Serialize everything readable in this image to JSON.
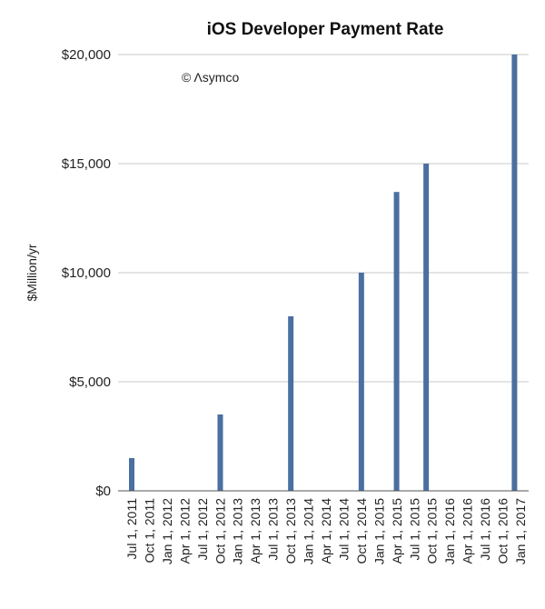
{
  "chart_data": {
    "type": "bar",
    "title": "iOS Developer Payment Rate",
    "ylabel": "$Million/yr",
    "xlabel": "",
    "annotation": "© Λsymco",
    "ylim": [
      0,
      20000
    ],
    "yticks": [
      0,
      5000,
      10000,
      15000,
      20000
    ],
    "ytick_labels": [
      "$0",
      "$5,000",
      "$10,000",
      "$15,000",
      "$20,000"
    ],
    "grid": true,
    "bar_color": "#4a6fa0",
    "categories": [
      "Jul 1, 2011",
      "Oct 1, 2011",
      "Jan 1, 2012",
      "Apr 1, 2012",
      "Jul 1, 2012",
      "Oct 1, 2012",
      "Jan 1, 2013",
      "Apr 1, 2013",
      "Jul 1, 2013",
      "Oct 1, 2013",
      "Jan 1, 2014",
      "Apr 1, 2014",
      "Jul 1, 2014",
      "Oct 1, 2014",
      "Jan 1, 2015",
      "Apr 1, 2015",
      "Jul 1, 2015",
      "Oct 1, 2015",
      "Jan 1, 2016",
      "Apr 1, 2016",
      "Jul 1, 2016",
      "Oct 1, 2016",
      "Jan 1, 2017"
    ],
    "bars": [
      {
        "date": "2011-07-01",
        "value": 1500
      },
      {
        "date": "2012-10-01",
        "value": 3500
      },
      {
        "date": "2013-10-01",
        "value": 8000
      },
      {
        "date": "2014-10-01",
        "value": 10000
      },
      {
        "date": "2015-04-01",
        "value": 13700
      },
      {
        "date": "2015-09-01",
        "value": 15000
      },
      {
        "date": "2016-12-01",
        "value": 20000
      }
    ]
  }
}
